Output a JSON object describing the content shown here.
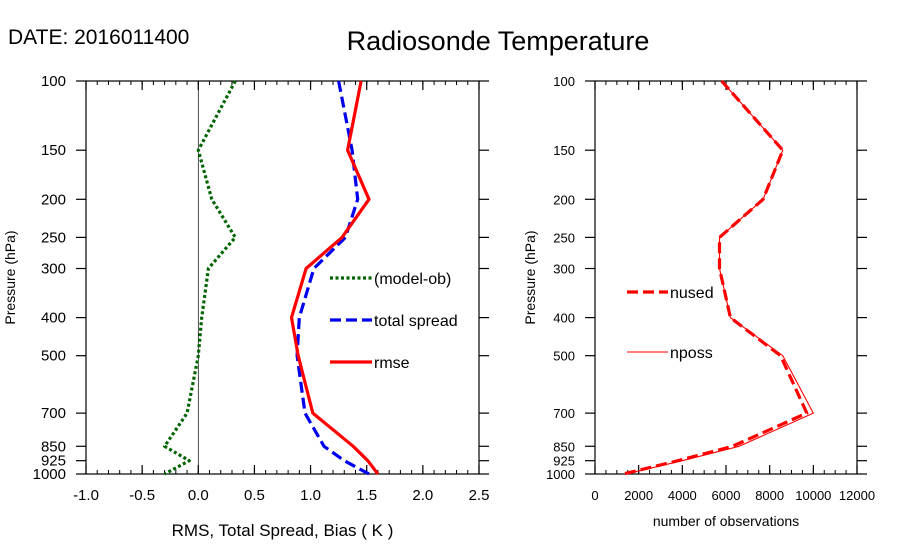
{
  "date_label": "DATE: 2016011400",
  "title": "Radiosonde Temperature",
  "chart_data": [
    {
      "type": "line",
      "xlabel": "RMS, Total Spread, Bias ( K )",
      "ylabel": "Pressure (hPa)",
      "xlim": [
        -1.0,
        2.5
      ],
      "ylim": [
        1000,
        100
      ],
      "y_scale": "log",
      "x_ticks": [
        "-1.0",
        "-0.5",
        "0.0",
        "0.5",
        "1.0",
        "1.5",
        "2.0",
        "2.5"
      ],
      "x_tick_values": [
        -1.0,
        -0.5,
        0.0,
        0.5,
        1.0,
        1.5,
        2.0,
        2.5
      ],
      "y_ticks": [
        "100",
        "150",
        "200",
        "250",
        "300",
        "400",
        "500",
        "700",
        "850",
        "925",
        "1000"
      ],
      "y_tick_values": [
        100,
        150,
        200,
        250,
        300,
        400,
        500,
        700,
        850,
        925,
        1000
      ],
      "zero_line": true,
      "legend_position": "right",
      "series": [
        {
          "name": "(model-ob)",
          "color": "#006400",
          "style": "dotted",
          "pressure": [
            100,
            150,
            200,
            250,
            300,
            400,
            500,
            700,
            850,
            925,
            1000
          ],
          "values": [
            0.33,
            0.0,
            0.12,
            0.33,
            0.09,
            0.03,
            0.0,
            -0.1,
            -0.3,
            -0.08,
            -0.3
          ]
        },
        {
          "name": "total spread",
          "color": "#0000ee",
          "style": "dashed",
          "pressure": [
            100,
            150,
            200,
            250,
            300,
            400,
            500,
            700,
            850,
            925,
            1000
          ],
          "values": [
            1.25,
            1.37,
            1.42,
            1.31,
            1.03,
            0.9,
            0.88,
            0.95,
            1.12,
            1.3,
            1.52
          ]
        },
        {
          "name": "rmse",
          "color": "#ff0000",
          "style": "solid",
          "pressure": [
            100,
            150,
            200,
            250,
            300,
            400,
            500,
            700,
            850,
            925,
            1000
          ],
          "values": [
            1.45,
            1.33,
            1.52,
            1.28,
            0.96,
            0.83,
            0.89,
            1.02,
            1.38,
            1.51,
            1.6
          ]
        }
      ]
    },
    {
      "type": "line",
      "xlabel": "number of observations",
      "ylabel": "Pressure (hPa)",
      "xlim": [
        0,
        12000
      ],
      "ylim": [
        1000,
        100
      ],
      "y_scale": "log",
      "x_ticks": [
        "0",
        "2000",
        "4000",
        "6000",
        "8000",
        "10000",
        "12000"
      ],
      "x_tick_values": [
        0,
        2000,
        4000,
        6000,
        8000,
        10000,
        12000
      ],
      "y_ticks": [
        "100",
        "150",
        "200",
        "250",
        "300",
        "400",
        "500",
        "700",
        "850",
        "925",
        "1000"
      ],
      "y_tick_values": [
        100,
        150,
        200,
        250,
        300,
        400,
        500,
        700,
        850,
        925,
        1000
      ],
      "legend_position": "left",
      "series": [
        {
          "name": "nused",
          "color": "#ff0000",
          "style": "dashed",
          "pressure": [
            100,
            150,
            200,
            250,
            300,
            400,
            500,
            700,
            850,
            925,
            1000
          ],
          "values": [
            5800,
            8600,
            7700,
            5700,
            5700,
            6200,
            8500,
            9700,
            6300,
            3800,
            1300
          ]
        },
        {
          "name": "nposs",
          "color": "#ff0000",
          "style": "thin",
          "pressure": [
            100,
            150,
            200,
            250,
            300,
            400,
            500,
            700,
            850,
            925,
            1000
          ],
          "values": [
            5800,
            8600,
            7700,
            5700,
            5700,
            6200,
            8600,
            10000,
            6600,
            4000,
            1400
          ]
        }
      ]
    }
  ]
}
